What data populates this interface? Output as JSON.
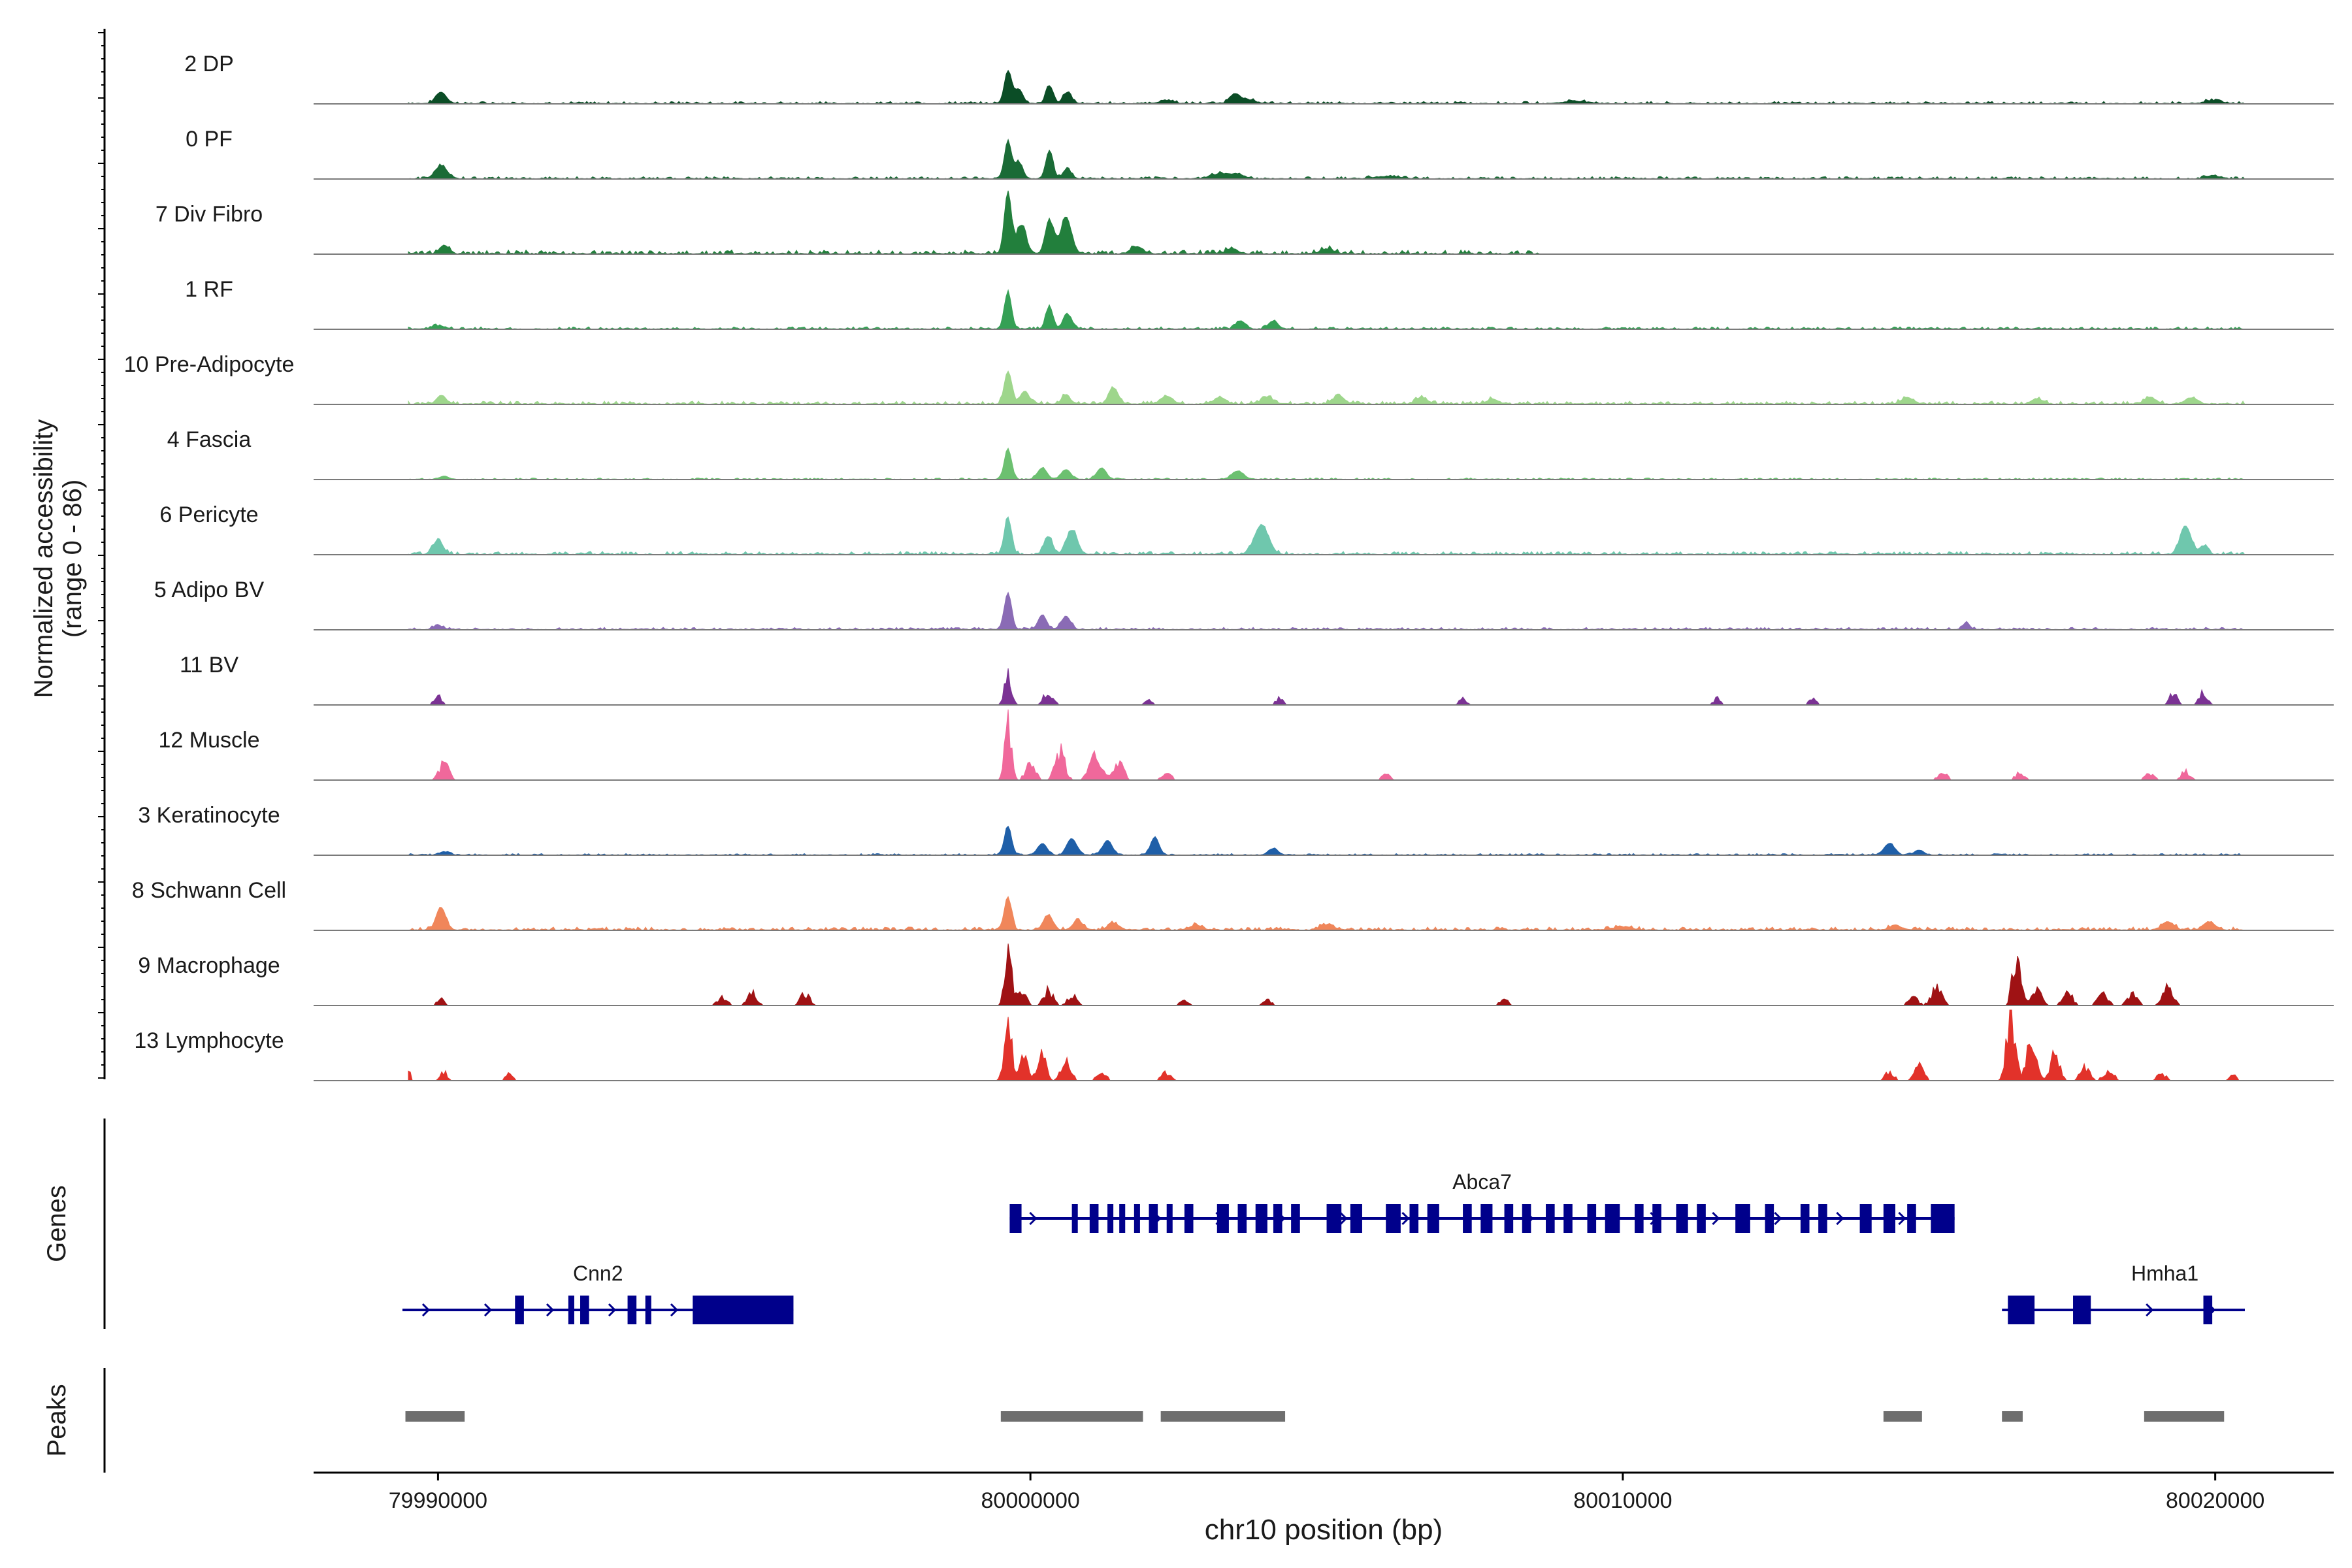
{
  "chart_data": {
    "type": "area",
    "title": "",
    "chromosome": "chr10",
    "xlabel": "chr10 position (bp)",
    "ylabel": "Normalized accessibility",
    "ylabel_range": "(range 0 - 86)",
    "y_range": [
      0,
      86
    ],
    "xlim": [
      79987900,
      80022000
    ],
    "x_ticks": [
      79990000,
      80000000,
      80010000,
      80020000
    ],
    "x_tick_labels": [
      "79990000",
      "80000000",
      "80010000",
      "80020000"
    ],
    "genes_label": "Genes",
    "peaks_label": "Peaks",
    "tracks": [
      {
        "name": "2 DP",
        "color": "#0b4d26",
        "peaks": [
          [
            79990050,
            14,
            90
          ],
          [
            79999620,
            40,
            60
          ],
          [
            79999800,
            18,
            70
          ],
          [
            80000320,
            22,
            60
          ],
          [
            80000620,
            14,
            70
          ],
          [
            80003450,
            12,
            90
          ],
          [
            80003700,
            4,
            120
          ],
          [
            80002300,
            4,
            120
          ],
          [
            80009200,
            3,
            200
          ],
          [
            80019950,
            4,
            120
          ]
        ],
        "noise": 3,
        "span": [
          79989500,
          80020500
        ]
      },
      {
        "name": "0 PF",
        "color": "#1a6b36",
        "peaks": [
          [
            79990050,
            16,
            100
          ],
          [
            79999620,
            45,
            60
          ],
          [
            79999800,
            20,
            70
          ],
          [
            80000320,
            35,
            60
          ],
          [
            80000620,
            12,
            70
          ],
          [
            80003200,
            6,
            150
          ],
          [
            80003500,
            5,
            120
          ],
          [
            80006000,
            3,
            200
          ],
          [
            80019950,
            4,
            120
          ]
        ],
        "noise": 3,
        "span": [
          79989500,
          80020500
        ]
      },
      {
        "name": "7 Div Fibro",
        "color": "#227f3c",
        "peaks": [
          [
            79990100,
            10,
            80
          ],
          [
            79999620,
            75,
            60
          ],
          [
            79999850,
            35,
            80
          ],
          [
            80000320,
            40,
            70
          ],
          [
            80000600,
            45,
            90
          ],
          [
            80001800,
            8,
            100
          ],
          [
            80003400,
            6,
            100
          ],
          [
            80005000,
            6,
            100
          ]
        ],
        "noise": 5,
        "span": [
          79989500,
          80008600
        ]
      },
      {
        "name": "1 RF",
        "color": "#35a055",
        "peaks": [
          [
            79990000,
            4,
            100
          ],
          [
            79999620,
            45,
            60
          ],
          [
            80000320,
            28,
            60
          ],
          [
            80000620,
            18,
            70
          ],
          [
            80003550,
            10,
            80
          ],
          [
            80004100,
            10,
            80
          ]
        ],
        "noise": 3,
        "span": [
          79989500,
          80020500
        ]
      },
      {
        "name": "10 Pre-Adipocyte",
        "color": "#9ed68c",
        "peaks": [
          [
            79990050,
            10,
            80
          ],
          [
            79999620,
            40,
            60
          ],
          [
            79999900,
            15,
            80
          ],
          [
            80000600,
            12,
            70
          ],
          [
            80001400,
            20,
            80
          ],
          [
            80002300,
            10,
            100
          ],
          [
            80003200,
            8,
            100
          ],
          [
            80004000,
            8,
            100
          ],
          [
            80005200,
            10,
            100
          ],
          [
            80006600,
            8,
            100
          ],
          [
            80007800,
            6,
            100
          ],
          [
            80014800,
            8,
            100
          ],
          [
            80017000,
            6,
            100
          ],
          [
            80018900,
            8,
            100
          ],
          [
            80019600,
            8,
            100
          ]
        ],
        "noise": 4,
        "span": [
          79989500,
          80020500
        ]
      },
      {
        "name": "4 Fascia",
        "color": "#6cc070",
        "peaks": [
          [
            79990100,
            4,
            80
          ],
          [
            79999620,
            38,
            60
          ],
          [
            80000200,
            14,
            80
          ],
          [
            80000600,
            12,
            80
          ],
          [
            80001200,
            14,
            80
          ],
          [
            80003500,
            10,
            100
          ]
        ],
        "noise": 2,
        "span": [
          79989500,
          80020500
        ]
      },
      {
        "name": "6 Pericyte",
        "color": "#6fc7ad",
        "peaks": [
          [
            79990000,
            18,
            80
          ],
          [
            79999620,
            45,
            60
          ],
          [
            80000300,
            22,
            70
          ],
          [
            80000700,
            30,
            90
          ],
          [
            80003900,
            35,
            120
          ],
          [
            80019500,
            35,
            90
          ],
          [
            80019800,
            10,
            70
          ]
        ],
        "noise": 4,
        "span": [
          79989500,
          80020500
        ]
      },
      {
        "name": "5 Adipo BV",
        "color": "#8a6bb5",
        "peaks": [
          [
            79990000,
            5,
            80
          ],
          [
            79999620,
            45,
            60
          ],
          [
            80000200,
            18,
            70
          ],
          [
            80000600,
            16,
            80
          ],
          [
            80015800,
            8,
            60
          ]
        ],
        "noise": 3,
        "span": [
          79989500,
          80020500
        ]
      },
      {
        "name": "11 BV",
        "color": "#7b3294",
        "peaks": [
          [
            79990000,
            12,
            60
          ],
          [
            79999620,
            40,
            60
          ],
          [
            80000300,
            15,
            80
          ],
          [
            80002000,
            8,
            60
          ],
          [
            80004200,
            8,
            60
          ],
          [
            80007300,
            8,
            60
          ],
          [
            80011600,
            8,
            60
          ],
          [
            80013200,
            8,
            60
          ],
          [
            80019300,
            14,
            70
          ],
          [
            80019800,
            16,
            70
          ]
        ],
        "noise": 0,
        "sparse": true,
        "span": [
          79989500,
          80020500
        ]
      },
      {
        "name": "12 Muscle",
        "color": "#f0689b",
        "peaks": [
          [
            79990100,
            20,
            80
          ],
          [
            79999620,
            70,
            60
          ],
          [
            80000000,
            20,
            80
          ],
          [
            80000500,
            35,
            80
          ],
          [
            80001100,
            35,
            100
          ],
          [
            80001500,
            20,
            80
          ],
          [
            80002300,
            8,
            80
          ],
          [
            80006000,
            6,
            80
          ],
          [
            80015400,
            8,
            80
          ],
          [
            80016700,
            8,
            80
          ],
          [
            80018900,
            8,
            80
          ],
          [
            80019500,
            10,
            80
          ]
        ],
        "noise": 0,
        "sparse": true,
        "span": [
          79989500,
          80020500
        ]
      },
      {
        "name": "3 Keratinocyte",
        "color": "#1f5fa8",
        "peaks": [
          [
            79990100,
            4,
            80
          ],
          [
            79999620,
            35,
            60
          ],
          [
            80000200,
            14,
            80
          ],
          [
            80000700,
            20,
            80
          ],
          [
            80001300,
            18,
            80
          ],
          [
            80002100,
            22,
            70
          ],
          [
            80004100,
            8,
            80
          ],
          [
            80014500,
            14,
            90
          ],
          [
            80015000,
            6,
            80
          ]
        ],
        "noise": 2,
        "span": [
          79989500,
          80020500
        ]
      },
      {
        "name": "8 Schwann Cell",
        "color": "#f0865a",
        "peaks": [
          [
            79990050,
            28,
            80
          ],
          [
            79999620,
            40,
            60
          ],
          [
            80000300,
            18,
            80
          ],
          [
            80000800,
            12,
            80
          ],
          [
            80001400,
            8,
            100
          ],
          [
            80002800,
            6,
            100
          ],
          [
            80005000,
            6,
            120
          ],
          [
            80010000,
            4,
            150
          ],
          [
            80014600,
            6,
            100
          ],
          [
            80019200,
            10,
            100
          ],
          [
            80019900,
            10,
            100
          ]
        ],
        "noise": 4,
        "span": [
          79989500,
          80020500
        ]
      },
      {
        "name": "9 Macrophage",
        "color": "#9f1214",
        "peaks": [
          [
            79990050,
            8,
            60
          ],
          [
            79994800,
            10,
            80
          ],
          [
            79995300,
            15,
            80
          ],
          [
            79996200,
            14,
            80
          ],
          [
            79999620,
            65,
            60
          ],
          [
            79999850,
            20,
            70
          ],
          [
            80000300,
            18,
            80
          ],
          [
            80000700,
            12,
            80
          ],
          [
            80002600,
            6,
            80
          ],
          [
            80004000,
            6,
            80
          ],
          [
            80008000,
            6,
            80
          ],
          [
            80014900,
            10,
            80
          ],
          [
            80015300,
            20,
            90
          ],
          [
            80016650,
            60,
            70
          ],
          [
            80017000,
            20,
            80
          ],
          [
            80017500,
            18,
            80
          ],
          [
            80018100,
            16,
            80
          ],
          [
            80018600,
            14,
            80
          ],
          [
            80019200,
            20,
            90
          ]
        ],
        "noise": 0,
        "sparse": true,
        "span": [
          79989500,
          80020500
        ]
      },
      {
        "name": "13 Lymphocyte",
        "color": "#e2322a",
        "peaks": [
          [
            79989500,
            18,
            30
          ],
          [
            79990100,
            10,
            60
          ],
          [
            79991200,
            8,
            60
          ],
          [
            79999620,
            80,
            60
          ],
          [
            79999900,
            30,
            70
          ],
          [
            80000200,
            30,
            70
          ],
          [
            80000600,
            25,
            80
          ],
          [
            80001200,
            10,
            80
          ],
          [
            80002300,
            10,
            80
          ],
          [
            80014500,
            10,
            80
          ],
          [
            80015000,
            20,
            80
          ],
          [
            80016550,
            85,
            70
          ],
          [
            80016900,
            50,
            80
          ],
          [
            80017300,
            30,
            80
          ],
          [
            80017800,
            18,
            80
          ],
          [
            80018200,
            14,
            80
          ],
          [
            80019100,
            8,
            80
          ],
          [
            80020300,
            8,
            60
          ]
        ],
        "noise": 0,
        "sparse": true,
        "span": [
          79989500,
          80020500
        ]
      }
    ],
    "genes": [
      {
        "name": "Abca7",
        "strand": "+",
        "start": 79999650,
        "end": 80015600,
        "row": 0,
        "exons": [
          [
            79999650,
            79999850
          ],
          [
            80000700,
            80000800
          ],
          [
            80001000,
            80001150
          ],
          [
            80001300,
            80001400
          ],
          [
            80001500,
            80001600
          ],
          [
            80001750,
            80001850
          ],
          [
            80002000,
            80002150
          ],
          [
            80002300,
            80002400
          ],
          [
            80002600,
            80002750
          ],
          [
            80003150,
            80003350
          ],
          [
            80003500,
            80003650
          ],
          [
            80003800,
            80004000
          ],
          [
            80004100,
            80004250
          ],
          [
            80004400,
            80004550
          ],
          [
            80005000,
            80005250
          ],
          [
            80005400,
            80005600
          ],
          [
            80006000,
            80006250
          ],
          [
            80006400,
            80006550
          ],
          [
            80006700,
            80006900
          ],
          [
            80007300,
            80007450
          ],
          [
            80007600,
            80007800
          ],
          [
            80008000,
            80008150
          ],
          [
            80008300,
            80008450
          ],
          [
            80008700,
            80008850
          ],
          [
            80009000,
            80009150
          ],
          [
            80009400,
            80009550
          ],
          [
            80009700,
            80009950
          ],
          [
            80010200,
            80010350
          ],
          [
            80010500,
            80010650
          ],
          [
            80010900,
            80011100
          ],
          [
            80011250,
            80011400
          ],
          [
            80011900,
            80012150
          ],
          [
            80012400,
            80012550
          ],
          [
            80013000,
            80013150
          ],
          [
            80013300,
            80013450
          ],
          [
            80014000,
            80014200
          ],
          [
            80014400,
            80014600
          ],
          [
            80014800,
            80014950
          ],
          [
            80015200,
            80015600
          ]
        ]
      },
      {
        "name": "Cnn2",
        "strand": "+",
        "start": 79989400,
        "end": 79996000,
        "row": 1,
        "exons": [
          [
            79991300,
            79991450
          ],
          [
            79992200,
            79992300
          ],
          [
            79992400,
            79992550
          ],
          [
            79993200,
            79993350
          ],
          [
            79993500,
            79993600
          ],
          [
            79994300,
            79996000
          ]
        ]
      },
      {
        "name": "Hmha1",
        "strand": "+",
        "start": 80016400,
        "end": 80020500,
        "row": 1,
        "exons": [
          [
            80016500,
            80016950
          ],
          [
            80017600,
            80017900
          ],
          [
            80019800,
            80019950
          ]
        ]
      }
    ],
    "peaks_regions": [
      [
        79989450,
        79990450
      ],
      [
        79999500,
        80001900
      ],
      [
        80002200,
        80004300
      ],
      [
        80014400,
        80015050
      ],
      [
        80016400,
        80016750
      ],
      [
        80018800,
        80020150
      ]
    ]
  }
}
